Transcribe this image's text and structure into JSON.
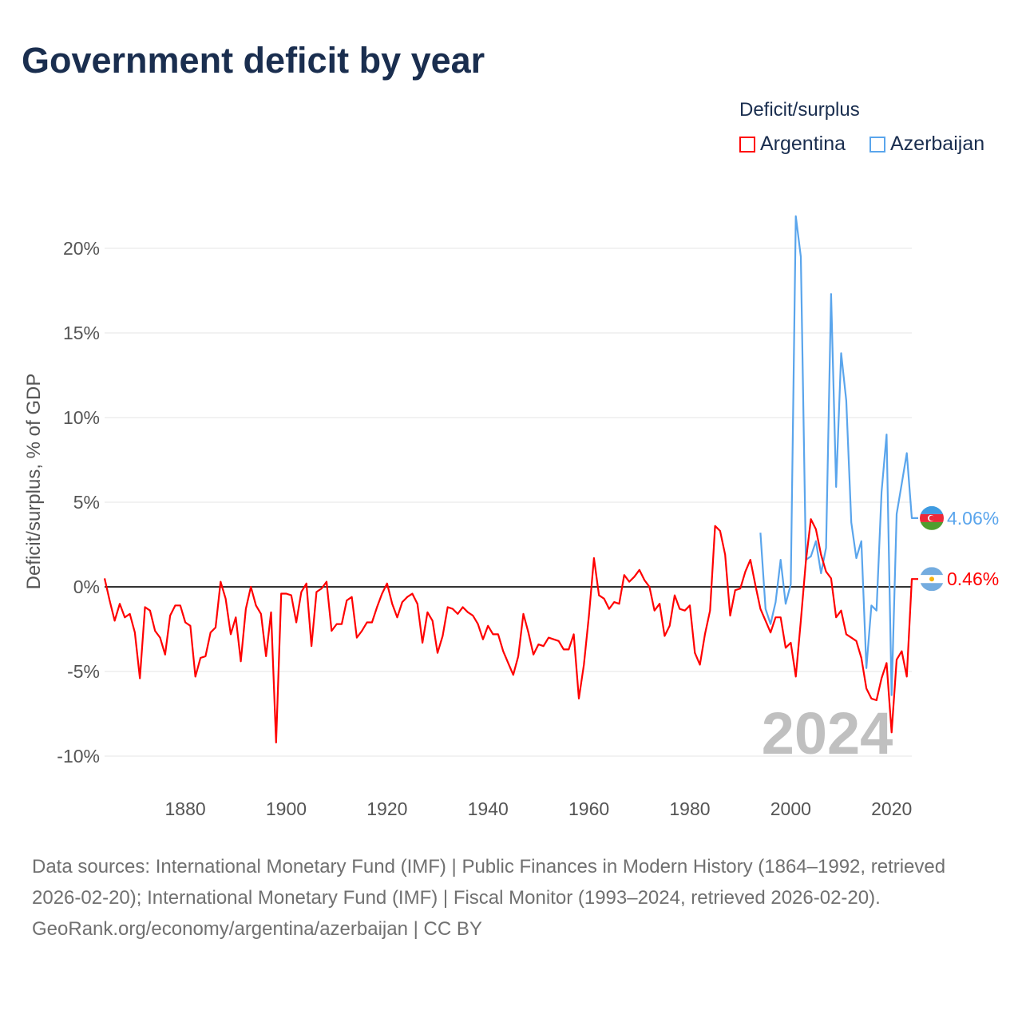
{
  "title": "Government deficit by year",
  "legend": {
    "title": "Deficit/surplus",
    "items": [
      {
        "name": "Argentina",
        "color": "#ff0000"
      },
      {
        "name": "Azerbaijan",
        "color": "#5aa5ec"
      }
    ]
  },
  "watermark_year": "2024",
  "footer": {
    "sources": "Data sources: International Monetary Fund (IMF) | Public Finances in Modern History (1864–1992, retrieved 2026-02-20); International Monetary Fund (IMF) | Fiscal Monitor (1993–2024, retrieved 2026-02-20).",
    "credit": "GeoRank.org/economy/argentina/azerbaijan | CC BY"
  },
  "chart_data": {
    "type": "line",
    "title": "Government deficit by year",
    "xlabel": "",
    "ylabel": "Deficit/surplus, % of GDP",
    "xlim": [
      1864,
      2024
    ],
    "ylim": [
      -10,
      20
    ],
    "xticks": [
      1880,
      1900,
      1920,
      1940,
      1960,
      1980,
      2000,
      2020
    ],
    "xtick_labels": [
      "1880",
      "1900",
      "1920",
      "1940",
      "1960",
      "1980",
      "2000",
      "2020"
    ],
    "yticks": [
      -10,
      -5,
      0,
      5,
      10,
      15,
      20
    ],
    "ytick_labels": [
      "-10%",
      "-5%",
      "0%",
      "5%",
      "10%",
      "15%",
      "20%"
    ],
    "grid": true,
    "legend_position": "top-right",
    "series": [
      {
        "name": "Argentina",
        "color": "#ff0000",
        "start_year": 1864,
        "end_label": "0.46%",
        "values": [
          0.5,
          -0.8,
          -2.0,
          -1.0,
          -1.8,
          -1.6,
          -2.7,
          -5.4,
          -1.2,
          -1.4,
          -2.6,
          -3.0,
          -4.0,
          -1.7,
          -1.1,
          -1.1,
          -2.1,
          -2.3,
          -5.3,
          -4.2,
          -4.1,
          -2.7,
          -2.4,
          0.3,
          -0.7,
          -2.8,
          -1.8,
          -4.4,
          -1.3,
          0.0,
          -1.1,
          -1.6,
          -4.1,
          -1.5,
          -9.2,
          -0.4,
          -0.4,
          -0.5,
          -2.1,
          -0.3,
          0.2,
          -3.5,
          -0.3,
          -0.1,
          0.3,
          -2.6,
          -2.2,
          -2.2,
          -0.8,
          -0.6,
          -3.0,
          -2.6,
          -2.1,
          -2.1,
          -1.2,
          -0.4,
          0.2,
          -1.0,
          -1.8,
          -0.9,
          -0.6,
          -0.4,
          -1.0,
          -3.3,
          -1.5,
          -2.0,
          -3.9,
          -2.9,
          -1.2,
          -1.3,
          -1.6,
          -1.2,
          -1.5,
          -1.7,
          -2.2,
          -3.1,
          -2.3,
          -2.8,
          -2.8,
          -3.8,
          -4.5,
          -5.2,
          -4.1,
          -1.6,
          -2.7,
          -4.0,
          -3.4,
          -3.5,
          -3.0,
          -3.1,
          -3.2,
          -3.7,
          -3.7,
          -2.8,
          -6.6,
          -4.6,
          -1.7,
          1.7,
          -0.5,
          -0.7,
          -1.3,
          -0.9,
          -1.0,
          0.7,
          0.3,
          0.6,
          1.0,
          0.4,
          0.0,
          -1.4,
          -1.0,
          -2.9,
          -2.3,
          -0.5,
          -1.3,
          -1.4,
          -1.1,
          -3.9,
          -4.6,
          -2.8,
          -1.4,
          3.6,
          3.3,
          1.9,
          -1.7,
          -0.2,
          -0.1,
          0.9,
          1.6,
          0.1,
          -1.3,
          -2.0,
          -2.7,
          -1.8,
          -1.8,
          -3.6,
          -3.3,
          -5.3,
          -2.0,
          1.5,
          4.0,
          3.4,
          1.9,
          0.9,
          0.5,
          -1.8,
          -1.4,
          -2.8,
          -3.0,
          -3.2,
          -4.2,
          -6.0,
          -6.6,
          -6.7,
          -5.4,
          -4.5,
          -8.6,
          -4.3,
          -3.8,
          -5.3,
          0.46
        ]
      },
      {
        "name": "Azerbaijan",
        "color": "#5aa5ec",
        "start_year": 1994,
        "end_label": "4.06%",
        "values": [
          3.2,
          -1.3,
          -2.2,
          -0.9,
          1.6,
          -1.0,
          0.15,
          21.9,
          19.5,
          1.6,
          1.8,
          2.7,
          0.8,
          2.3,
          17.3,
          5.9,
          13.8,
          11.0,
          3.8,
          1.7,
          2.7,
          -4.8,
          -1.1,
          -1.4,
          5.6,
          9.0,
          -6.4,
          4.3,
          6.1,
          7.9,
          4.06
        ]
      }
    ]
  }
}
